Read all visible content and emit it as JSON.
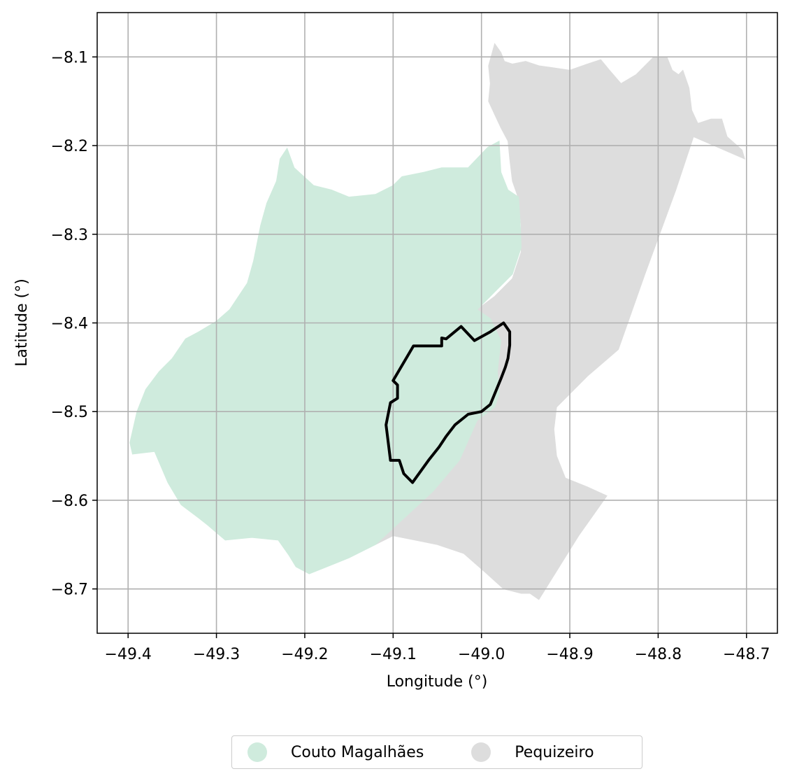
{
  "chart_data": {
    "type": "map",
    "xlabel": "Longitude (°)",
    "ylabel": "Latitude (°)",
    "xlim": [
      -49.435,
      -48.665
    ],
    "ylim": [
      -8.75,
      -8.05
    ],
    "x_ticks": [
      -49.4,
      -49.3,
      -49.2,
      -49.1,
      -49.0,
      -48.9,
      -48.8,
      -48.7
    ],
    "x_tick_labels": [
      "−49.4",
      "−49.3",
      "−49.2",
      "−49.1",
      "−49.0",
      "−48.9",
      "−48.8",
      "−48.7"
    ],
    "y_ticks": [
      -8.1,
      -8.2,
      -8.3,
      -8.4,
      -8.5,
      -8.6,
      -8.7
    ],
    "y_tick_labels": [
      "−8.1",
      "−8.2",
      "−8.3",
      "−8.4",
      "−8.5",
      "−8.6",
      "−8.7"
    ],
    "grid": true,
    "legend_position": "bottom-center",
    "regions": [
      {
        "name": "Pequizeiro",
        "color": "#dddddd",
        "polygon": [
          [
            -48.985,
            -8.085
          ],
          [
            -48.978,
            -8.095
          ],
          [
            -48.974,
            -8.105
          ],
          [
            -48.965,
            -8.108
          ],
          [
            -48.95,
            -8.105
          ],
          [
            -48.935,
            -8.11
          ],
          [
            -48.92,
            -8.112
          ],
          [
            -48.9,
            -8.115
          ],
          [
            -48.88,
            -8.108
          ],
          [
            -48.865,
            -8.103
          ],
          [
            -48.855,
            -8.115
          ],
          [
            -48.842,
            -8.13
          ],
          [
            -48.825,
            -8.12
          ],
          [
            -48.805,
            -8.1
          ],
          [
            -48.79,
            -8.1
          ],
          [
            -48.784,
            -8.115
          ],
          [
            -48.777,
            -8.12
          ],
          [
            -48.772,
            -8.115
          ],
          [
            -48.765,
            -8.135
          ],
          [
            -48.762,
            -8.16
          ],
          [
            -48.755,
            -8.175
          ],
          [
            -48.74,
            -8.17
          ],
          [
            -48.728,
            -8.17
          ],
          [
            -48.722,
            -8.19
          ],
          [
            -48.705,
            -8.205
          ],
          [
            -48.702,
            -8.215
          ],
          [
            -48.76,
            -8.19
          ],
          [
            -48.78,
            -8.25
          ],
          [
            -48.815,
            -8.345
          ],
          [
            -48.845,
            -8.43
          ],
          [
            -48.88,
            -8.46
          ],
          [
            -48.915,
            -8.495
          ],
          [
            -48.918,
            -8.52
          ],
          [
            -48.915,
            -8.55
          ],
          [
            -48.905,
            -8.575
          ],
          [
            -48.88,
            -8.585
          ],
          [
            -48.858,
            -8.595
          ],
          [
            -48.89,
            -8.64
          ],
          [
            -48.935,
            -8.712
          ],
          [
            -48.945,
            -8.705
          ],
          [
            -48.955,
            -8.705
          ],
          [
            -48.975,
            -8.7
          ],
          [
            -48.995,
            -8.682
          ],
          [
            -49.02,
            -8.66
          ],
          [
            -49.05,
            -8.65
          ],
          [
            -49.075,
            -8.645
          ],
          [
            -49.1,
            -8.64
          ],
          [
            -49.12,
            -8.65
          ],
          [
            -49.055,
            -8.59
          ],
          [
            -49.025,
            -8.555
          ],
          [
            -49.005,
            -8.51
          ],
          [
            -48.985,
            -8.495
          ],
          [
            -48.98,
            -8.48
          ],
          [
            -48.982,
            -8.455
          ],
          [
            -48.978,
            -8.42
          ],
          [
            -48.99,
            -8.395
          ],
          [
            -49.005,
            -8.385
          ],
          [
            -48.985,
            -8.37
          ],
          [
            -48.965,
            -8.35
          ],
          [
            -48.955,
            -8.32
          ],
          [
            -48.955,
            -8.29
          ],
          [
            -48.958,
            -8.26
          ],
          [
            -48.965,
            -8.24
          ],
          [
            -48.968,
            -8.215
          ],
          [
            -48.97,
            -8.195
          ],
          [
            -48.978,
            -8.18
          ],
          [
            -48.985,
            -8.165
          ],
          [
            -48.992,
            -8.15
          ],
          [
            -48.99,
            -8.13
          ],
          [
            -48.992,
            -8.11
          ]
        ]
      },
      {
        "name": "Couto Magalhães",
        "color": "#cfebdd",
        "polygon": [
          [
            -49.22,
            -8.203
          ],
          [
            -49.212,
            -8.225
          ],
          [
            -49.19,
            -8.245
          ],
          [
            -49.17,
            -8.25
          ],
          [
            -49.15,
            -8.258
          ],
          [
            -49.12,
            -8.255
          ],
          [
            -49.1,
            -8.245
          ],
          [
            -49.09,
            -8.235
          ],
          [
            -49.065,
            -8.23
          ],
          [
            -49.045,
            -8.225
          ],
          [
            -49.015,
            -8.225
          ],
          [
            -48.993,
            -8.202
          ],
          [
            -48.98,
            -8.195
          ],
          [
            -48.978,
            -8.23
          ],
          [
            -48.97,
            -8.25
          ],
          [
            -48.958,
            -8.258
          ],
          [
            -48.956,
            -8.29
          ],
          [
            -48.955,
            -8.315
          ],
          [
            -48.965,
            -8.345
          ],
          [
            -48.985,
            -8.365
          ],
          [
            -49.005,
            -8.385
          ],
          [
            -48.99,
            -8.395
          ],
          [
            -48.978,
            -8.42
          ],
          [
            -48.982,
            -8.455
          ],
          [
            -48.98,
            -8.48
          ],
          [
            -48.985,
            -8.495
          ],
          [
            -49.005,
            -8.51
          ],
          [
            -49.025,
            -8.555
          ],
          [
            -49.055,
            -8.59
          ],
          [
            -49.12,
            -8.65
          ],
          [
            -49.15,
            -8.665
          ],
          [
            -49.175,
            -8.675
          ],
          [
            -49.195,
            -8.683
          ],
          [
            -49.21,
            -8.675
          ],
          [
            -49.218,
            -8.662
          ],
          [
            -49.23,
            -8.645
          ],
          [
            -49.26,
            -8.642
          ],
          [
            -49.29,
            -8.645
          ],
          [
            -49.31,
            -8.628
          ],
          [
            -49.32,
            -8.62
          ],
          [
            -49.34,
            -8.605
          ],
          [
            -49.355,
            -8.58
          ],
          [
            -49.37,
            -8.545
          ],
          [
            -49.395,
            -8.548
          ],
          [
            -49.398,
            -8.535
          ],
          [
            -49.39,
            -8.5
          ],
          [
            -49.38,
            -8.475
          ],
          [
            -49.365,
            -8.455
          ],
          [
            -49.35,
            -8.44
          ],
          [
            -49.335,
            -8.418
          ],
          [
            -49.32,
            -8.41
          ],
          [
            -49.3,
            -8.398
          ],
          [
            -49.285,
            -8.385
          ],
          [
            -49.265,
            -8.355
          ],
          [
            -49.258,
            -8.33
          ],
          [
            -49.25,
            -8.29
          ],
          [
            -49.243,
            -8.265
          ],
          [
            -49.232,
            -8.24
          ],
          [
            -49.228,
            -8.215
          ]
        ]
      }
    ],
    "boundary_outline": [
      [
        -48.975,
        -8.4
      ],
      [
        -48.968,
        -8.41
      ],
      [
        -48.968,
        -8.425
      ],
      [
        -48.97,
        -8.44
      ],
      [
        -48.973,
        -8.45
      ],
      [
        -48.978,
        -8.463
      ],
      [
        -48.985,
        -8.48
      ],
      [
        -48.99,
        -8.492
      ],
      [
        -49.0,
        -8.5
      ],
      [
        -49.015,
        -8.503
      ],
      [
        -49.03,
        -8.515
      ],
      [
        -49.04,
        -8.528
      ],
      [
        -49.048,
        -8.54
      ],
      [
        -49.06,
        -8.555
      ],
      [
        -49.078,
        -8.58
      ],
      [
        -49.088,
        -8.57
      ],
      [
        -49.093,
        -8.555
      ],
      [
        -49.103,
        -8.555
      ],
      [
        -49.108,
        -8.515
      ],
      [
        -49.103,
        -8.49
      ],
      [
        -49.095,
        -8.485
      ],
      [
        -49.095,
        -8.47
      ],
      [
        -49.1,
        -8.465
      ],
      [
        -49.077,
        -8.426
      ],
      [
        -49.045,
        -8.426
      ],
      [
        -49.045,
        -8.417
      ],
      [
        -49.04,
        -8.418
      ],
      [
        -49.023,
        -8.404
      ],
      [
        -49.008,
        -8.42
      ],
      [
        -48.99,
        -8.41
      ]
    ]
  },
  "legend": {
    "items": [
      {
        "label": "Couto Magalhães",
        "color": "#cfebdd"
      },
      {
        "label": "Pequizeiro",
        "color": "#dddddd"
      }
    ]
  }
}
